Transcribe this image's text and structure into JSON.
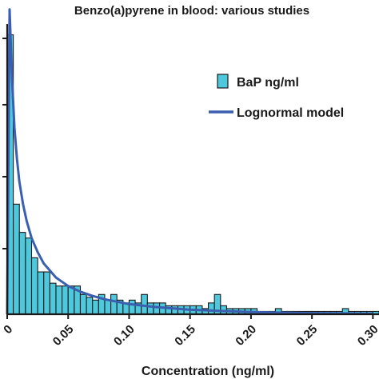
{
  "chart_data": {
    "type": "bar",
    "title": "Benzo(a)pyrene in blood:  various studies",
    "xlabel": "Concentration (ng/ml)",
    "ylabel": "",
    "xlim": [
      0,
      0.305
    ],
    "ylim": [
      0,
      1.0
    ],
    "grid": false,
    "legend_position": "top-right",
    "x_ticks": [
      0,
      0.05,
      0.1,
      0.15,
      0.2,
      0.25,
      0.3
    ],
    "x_tick_labels": [
      "0",
      "0.05",
      "0.10",
      "0.15",
      "0.20",
      "0.25",
      "0.30"
    ],
    "bin_width": 0.005,
    "series": [
      {
        "name": "BaP ng/ml",
        "kind": "histogram",
        "color": "#4dc8dd",
        "edge_color": "#1a1a1a",
        "bin_starts": [
          0.0,
          0.005,
          0.01,
          0.015,
          0.02,
          0.025,
          0.03,
          0.035,
          0.04,
          0.045,
          0.05,
          0.055,
          0.06,
          0.065,
          0.07,
          0.075,
          0.08,
          0.085,
          0.09,
          0.095,
          0.1,
          0.105,
          0.11,
          0.115,
          0.12,
          0.125,
          0.13,
          0.135,
          0.14,
          0.145,
          0.15,
          0.155,
          0.16,
          0.165,
          0.17,
          0.175,
          0.18,
          0.185,
          0.19,
          0.195,
          0.2,
          0.205,
          0.21,
          0.215,
          0.22,
          0.225,
          0.23,
          0.235,
          0.24,
          0.245,
          0.25,
          0.255,
          0.26,
          0.265,
          0.27,
          0.275,
          0.28,
          0.285,
          0.29,
          0.295,
          0.3
        ],
        "values": [
          0.99,
          0.39,
          0.29,
          0.27,
          0.2,
          0.15,
          0.15,
          0.11,
          0.1,
          0.1,
          0.1,
          0.1,
          0.07,
          0.06,
          0.05,
          0.07,
          0.05,
          0.07,
          0.05,
          0.04,
          0.05,
          0.04,
          0.07,
          0.04,
          0.04,
          0.04,
          0.03,
          0.03,
          0.03,
          0.03,
          0.03,
          0.03,
          0.02,
          0.04,
          0.07,
          0.03,
          0.02,
          0.02,
          0.02,
          0.02,
          0.02,
          0.01,
          0.01,
          0.01,
          0.02,
          0.01,
          0.01,
          0.01,
          0.01,
          0.01,
          0.01,
          0.01,
          0.01,
          0.01,
          0.01,
          0.02,
          0.01,
          0.01,
          0.01,
          0.01,
          0.01
        ]
      },
      {
        "name": "Lognormal model",
        "kind": "line",
        "color": "#3a5fb0",
        "x": [
          0.0,
          0.002,
          0.004,
          0.006,
          0.008,
          0.01,
          0.013,
          0.016,
          0.02,
          0.025,
          0.03,
          0.04,
          0.05,
          0.06,
          0.07,
          0.08,
          0.1,
          0.12,
          0.15,
          0.2,
          0.25,
          0.3
        ],
        "y": [
          0.0,
          1.08,
          0.83,
          0.66,
          0.55,
          0.47,
          0.39,
          0.33,
          0.27,
          0.22,
          0.18,
          0.13,
          0.1,
          0.08,
          0.065,
          0.053,
          0.036,
          0.026,
          0.016,
          0.008,
          0.004,
          0.002
        ]
      }
    ]
  }
}
